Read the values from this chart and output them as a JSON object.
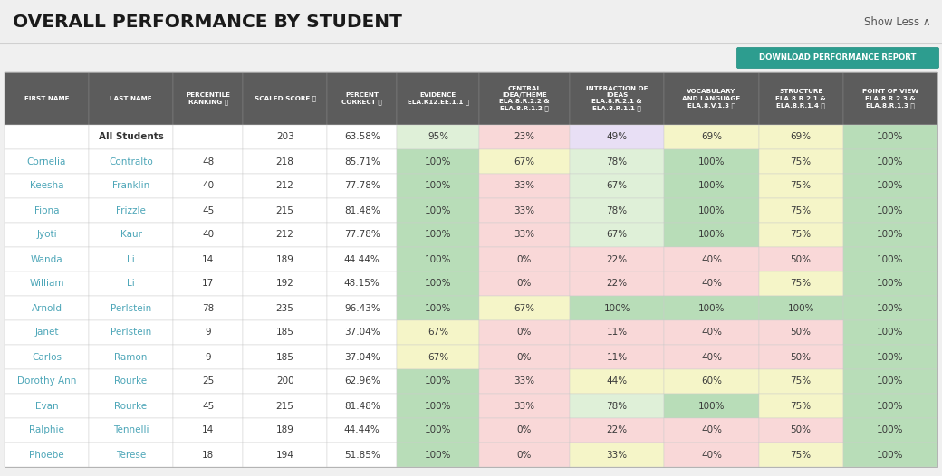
{
  "title": "OVERALL PERFORMANCE BY STUDENT",
  "show_less": "Show Less ∧",
  "download_btn": "DOWNLOAD PERFORMANCE REPORT",
  "header_bg": "#5c5c5c",
  "header_text_color": "#ffffff",
  "col_headers": [
    "FIRST NAME",
    "LAST NAME",
    "PERCENTILE\nRANKING ⓘ",
    "SCALED SCORE ⓘ",
    "PERCENT\nCORRECT ⓘ",
    "EVIDENCE\nELA.K12.EE.1.1 ⓘ",
    "CENTRAL\nIDEA/THEME\nELA.8.R.2.2 &\nELA.8.R.1.2 ⓘ",
    "INTERACTION OF\nIDEAS\nELA.8.R.2.1 &\nELA.8.R.1.1 ⓘ",
    "VOCABULARY\nAND LANGUAGE\nELA.8.V.1.3 ⓘ",
    "STRUCTURE\nELA.8.R.2.1 &\nELA.8.R.1.4 ⓘ",
    "POINT OF VIEW\nELA.8.R.2.3 &\nELA.8.R.1.3 ⓘ"
  ],
  "rows": [
    [
      "",
      "All Students",
      "",
      "203",
      "63.58%",
      "95%",
      "23%",
      "49%",
      "69%",
      "69%",
      "100%"
    ],
    [
      "Cornelia",
      "Contralto",
      "48",
      "218",
      "85.71%",
      "100%",
      "67%",
      "78%",
      "100%",
      "75%",
      "100%"
    ],
    [
      "Keesha",
      "Franklin",
      "40",
      "212",
      "77.78%",
      "100%",
      "33%",
      "67%",
      "100%",
      "75%",
      "100%"
    ],
    [
      "Fiona",
      "Frizzle",
      "45",
      "215",
      "81.48%",
      "100%",
      "33%",
      "78%",
      "100%",
      "75%",
      "100%"
    ],
    [
      "Jyoti",
      "Kaur",
      "40",
      "212",
      "77.78%",
      "100%",
      "33%",
      "67%",
      "100%",
      "75%",
      "100%"
    ],
    [
      "Wanda",
      "Li",
      "14",
      "189",
      "44.44%",
      "100%",
      "0%",
      "22%",
      "40%",
      "50%",
      "100%"
    ],
    [
      "William",
      "Li",
      "17",
      "192",
      "48.15%",
      "100%",
      "0%",
      "22%",
      "40%",
      "75%",
      "100%"
    ],
    [
      "Arnold",
      "Perlstein",
      "78",
      "235",
      "96.43%",
      "100%",
      "67%",
      "100%",
      "100%",
      "100%",
      "100%"
    ],
    [
      "Janet",
      "Perlstein",
      "9",
      "185",
      "37.04%",
      "67%",
      "0%",
      "11%",
      "40%",
      "50%",
      "100%"
    ],
    [
      "Carlos",
      "Ramon",
      "9",
      "185",
      "37.04%",
      "67%",
      "0%",
      "11%",
      "40%",
      "50%",
      "100%"
    ],
    [
      "Dorothy Ann",
      "Rourke",
      "25",
      "200",
      "62.96%",
      "100%",
      "33%",
      "44%",
      "60%",
      "75%",
      "100%"
    ],
    [
      "Evan",
      "Rourke",
      "45",
      "215",
      "81.48%",
      "100%",
      "33%",
      "78%",
      "100%",
      "75%",
      "100%"
    ],
    [
      "Ralphie",
      "Tennelli",
      "14",
      "189",
      "44.44%",
      "100%",
      "0%",
      "22%",
      "40%",
      "50%",
      "100%"
    ],
    [
      "Phoebe",
      "Terese",
      "18",
      "194",
      "51.85%",
      "100%",
      "0%",
      "33%",
      "40%",
      "75%",
      "100%"
    ]
  ],
  "name_color": "#4da6b8",
  "lastname_color": "#4da6b8",
  "allstudents_color": "#333333",
  "teal_btn_bg": "#2d9d8f",
  "teal_btn_text": "#ffffff",
  "col_widths_ratio": [
    82,
    82,
    68,
    82,
    68,
    80,
    88,
    92,
    92,
    82,
    92
  ],
  "green_dark": "#b8ddb8",
  "green_light": "#dff0d8",
  "yellow": "#f5f5c8",
  "pink": "#f9d8d8",
  "white": "#ffffff",
  "lavender": "#e8dff5"
}
